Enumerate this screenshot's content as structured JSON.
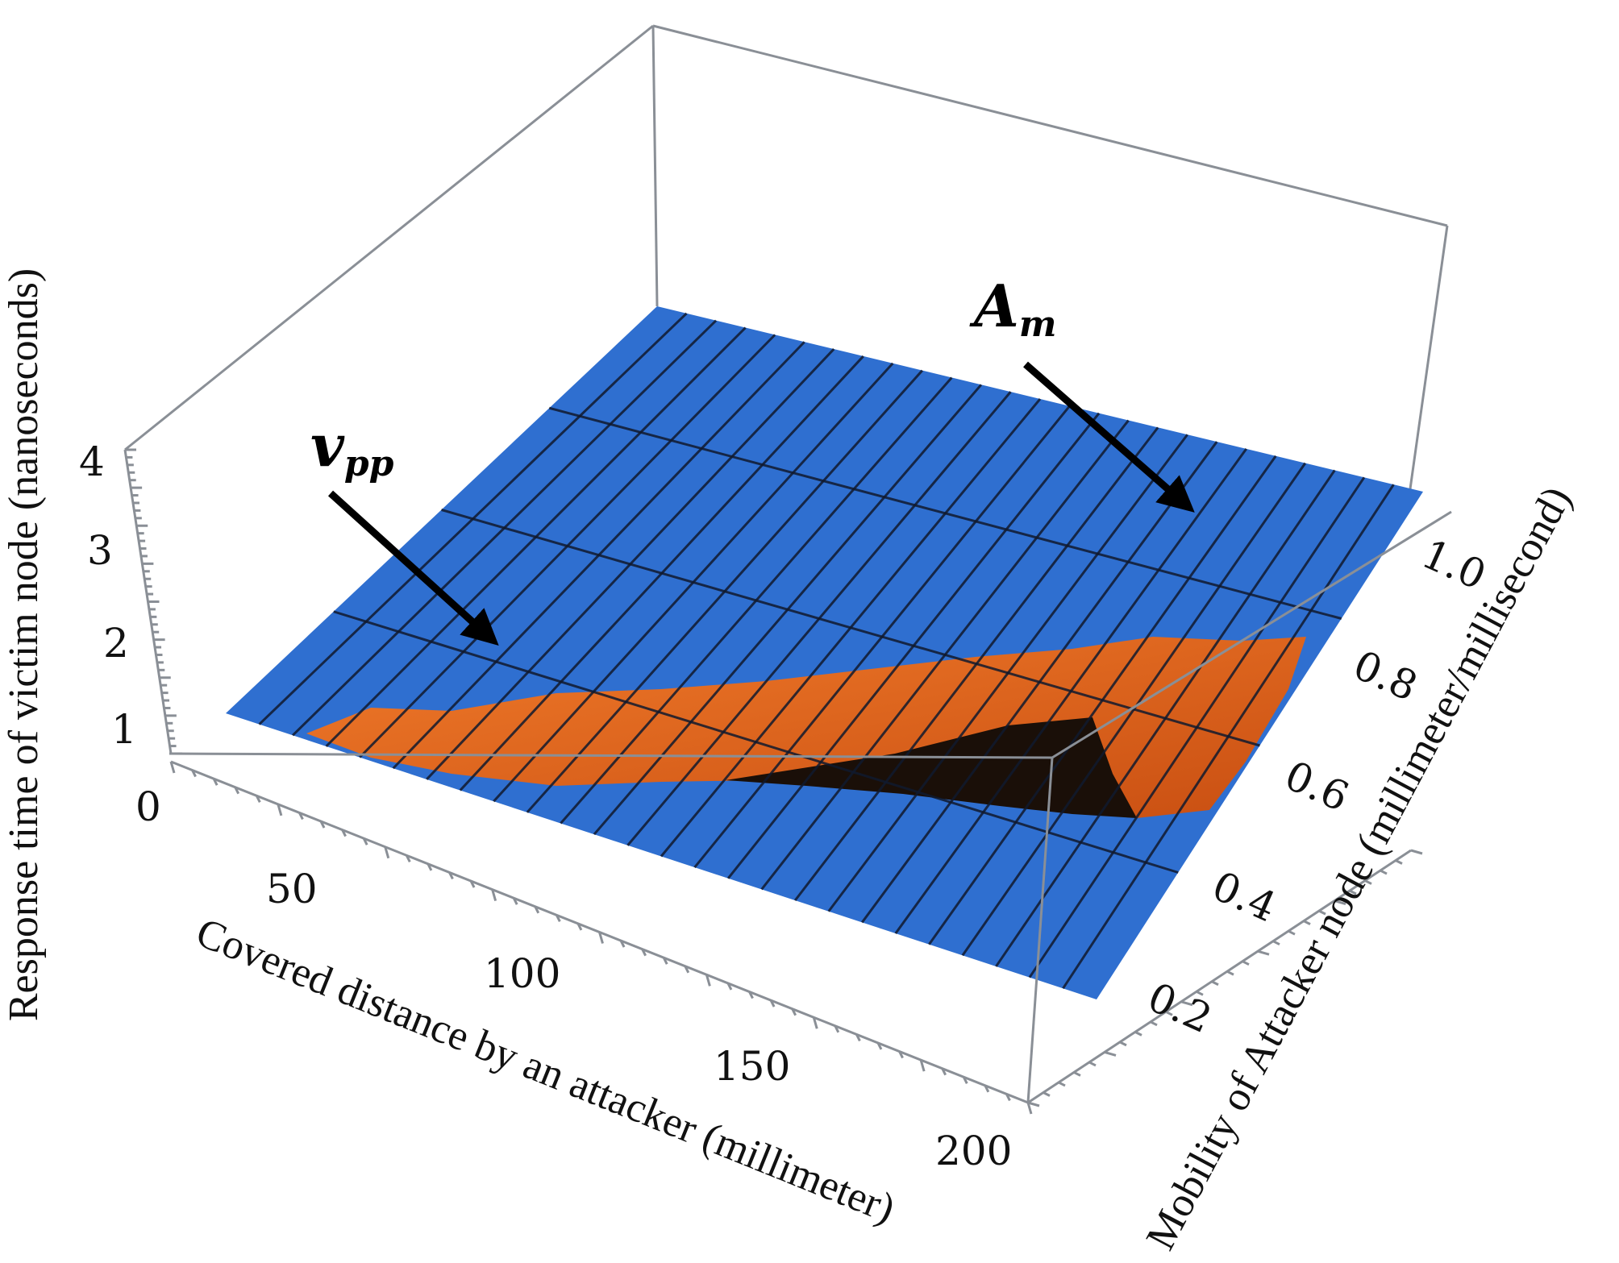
{
  "chart_data": {
    "type": "surface3d",
    "xlabel": "Covered distance by an attacker (millimeter)",
    "ylabel": "Mobility of Attacker node (millimeter/millisecond)",
    "zlabel": "Response time of victim node (nanoseconds)",
    "x_ticks": [
      "50",
      "100",
      "150",
      "200"
    ],
    "y_ticks": [
      "0.2",
      "0.4",
      "0.6",
      "0.8",
      "1.0"
    ],
    "z_ticks": [
      "0",
      "1",
      "2",
      "3",
      "4"
    ],
    "xlim": [
      10,
      225
    ],
    "ylim": [
      0,
      1.1
    ],
    "zlim": [
      0,
      4.2
    ],
    "series": [
      {
        "name": "v_pp",
        "color": "#2f6fd0",
        "surface": "plane",
        "z_at_corners": {
          "x_min_y_min": 0.9,
          "x_max_y_min": 0.9,
          "x_min_y_max": 2.0,
          "x_max_y_max": 2.0
        }
      },
      {
        "name": "A_m",
        "color": "#e2621b",
        "dark_color": "#1a0f08",
        "surface": "ridge"
      }
    ],
    "annotations": [
      {
        "series": "v_pp",
        "text_main": "v",
        "text_sub": "pp"
      },
      {
        "series": "A_m",
        "text_main": "A",
        "text_sub": "m"
      }
    ],
    "grid": true
  }
}
